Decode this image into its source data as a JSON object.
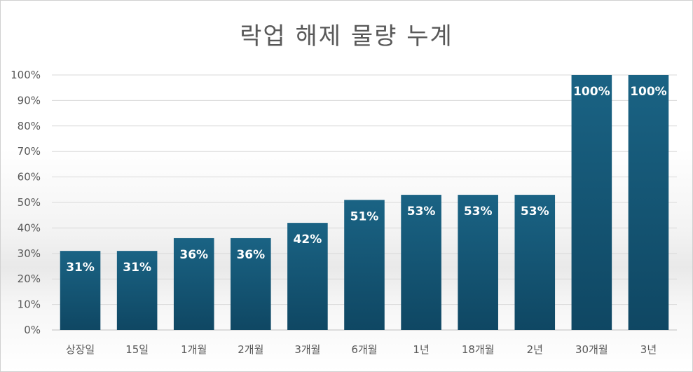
{
  "chart_data": {
    "type": "bar",
    "title": "락업 해제 물량 누계",
    "categories": [
      "상장일",
      "15일",
      "1개월",
      "2개월",
      "3개월",
      "6개월",
      "1년",
      "18개월",
      "2년",
      "30개월",
      "3년"
    ],
    "values": [
      31,
      31,
      36,
      36,
      42,
      51,
      53,
      53,
      53,
      100,
      100
    ],
    "data_labels": [
      "31%",
      "31%",
      "36%",
      "36%",
      "42%",
      "51%",
      "53%",
      "53%",
      "53%",
      "100%",
      "100%"
    ],
    "y_ticks": [
      "0%",
      "10%",
      "20%",
      "30%",
      "40%",
      "50%",
      "60%",
      "70%",
      "80%",
      "90%",
      "100%"
    ],
    "ylim": [
      0,
      100
    ],
    "grid": true,
    "bar_color": "#155E7E",
    "bar_color_dark": "#0F4461"
  }
}
